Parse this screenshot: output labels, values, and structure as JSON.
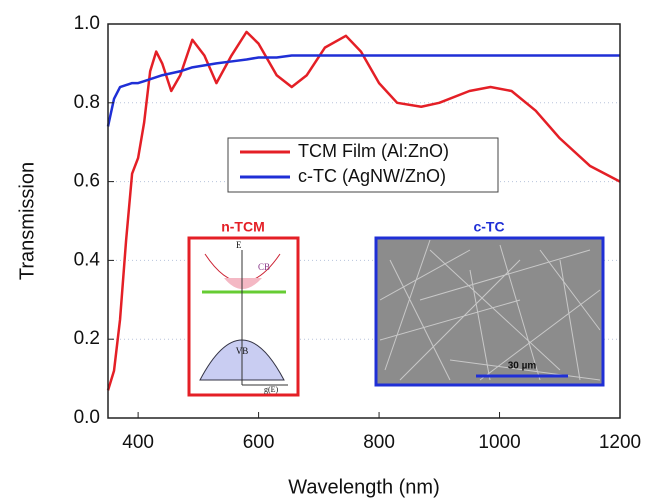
{
  "chart_data": {
    "type": "line",
    "x_label": "Wavelength (nm)",
    "y_label": "Transmission",
    "x": [
      350,
      360,
      370,
      380,
      390,
      400,
      410,
      420,
      430,
      440,
      455,
      470,
      490,
      510,
      530,
      555,
      580,
      600,
      630,
      655,
      680,
      710,
      745,
      770,
      800,
      830,
      870,
      900,
      950,
      985,
      1020,
      1060,
      1100,
      1150,
      1200
    ],
    "series": [
      {
        "name": "TCM Film (Al:ZnO)",
        "color": "#e41f26",
        "values": [
          0.07,
          0.12,
          0.25,
          0.45,
          0.62,
          0.66,
          0.75,
          0.88,
          0.93,
          0.9,
          0.83,
          0.87,
          0.96,
          0.92,
          0.85,
          0.92,
          0.98,
          0.95,
          0.87,
          0.84,
          0.87,
          0.94,
          0.97,
          0.93,
          0.85,
          0.8,
          0.79,
          0.8,
          0.83,
          0.84,
          0.83,
          0.78,
          0.71,
          0.64,
          0.6
        ]
      },
      {
        "name": "c-TC (AgNW/ZnO)",
        "color": "#1f2fd6",
        "values": [
          0.74,
          0.81,
          0.84,
          0.845,
          0.85,
          0.85,
          0.855,
          0.86,
          0.865,
          0.87,
          0.875,
          0.88,
          0.89,
          0.895,
          0.9,
          0.905,
          0.91,
          0.915,
          0.915,
          0.92,
          0.92,
          0.92,
          0.92,
          0.92,
          0.92,
          0.92,
          0.92,
          0.92,
          0.92,
          0.92,
          0.92,
          0.92,
          0.92,
          0.92,
          0.92
        ]
      }
    ],
    "xlim": [
      350,
      1200
    ],
    "xticks": [
      400,
      600,
      800,
      1000,
      1200
    ],
    "ylim": [
      0,
      1
    ],
    "yticks": [
      {
        "value": 0,
        "label": "0.0"
      },
      0.2,
      0.4,
      0.6,
      0.8,
      {
        "value": 1,
        "label": "1.0"
      }
    ],
    "grid": true,
    "legend_position": "center",
    "insets": [
      {
        "title": "n-TCM",
        "labels": [
          "E",
          "CB",
          "VB",
          "g(E)"
        ]
      },
      {
        "title": "c-TC",
        "labels": [
          "30 µm"
        ]
      }
    ]
  }
}
